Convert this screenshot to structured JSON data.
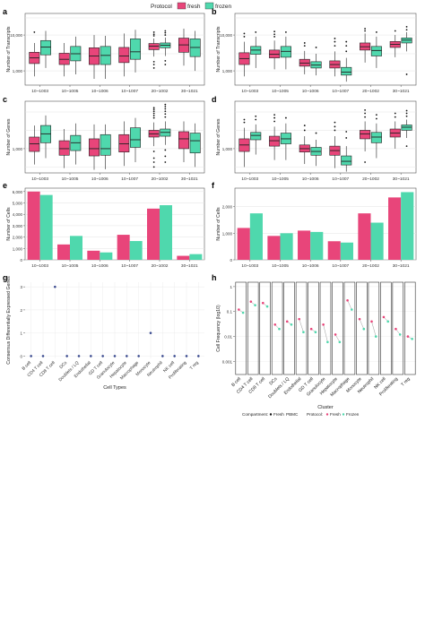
{
  "legend": {
    "title": "Protocol",
    "items": [
      {
        "label": "fresh",
        "color": "#e8457a"
      },
      {
        "label": "frozen",
        "color": "#4fd8ad"
      }
    ]
  },
  "x_categories_abcdef": [
    "10~1003",
    "10~1005",
    "10~1006",
    "10~1007",
    "20~1002",
    "30~1021"
  ],
  "panels": {
    "a": {
      "letter": "a",
      "ylabel": "Number of Transcripts",
      "yticks": [
        {
          "v": 1000,
          "label": "1,000"
        },
        {
          "v": 10000,
          "label": "10,000"
        }
      ]
    },
    "b": {
      "letter": "b",
      "ylabel": "Number of Transcripts",
      "yticks": [
        {
          "v": 1000,
          "label": "1,000"
        },
        {
          "v": 10000,
          "label": "10,000"
        }
      ]
    },
    "c": {
      "letter": "c",
      "ylabel": "Number of Genes",
      "yticks": [
        {
          "v": 1000,
          "label": "1,000"
        }
      ]
    },
    "d": {
      "letter": "d",
      "ylabel": "Number of Genes",
      "yticks": [
        {
          "v": 1000,
          "label": "1,000"
        }
      ]
    },
    "e": {
      "letter": "e",
      "ylabel": "Number of Cells",
      "yticks": [
        {
          "v": 0,
          "label": "0"
        },
        {
          "v": 1000,
          "label": "1,000"
        },
        {
          "v": 2000,
          "label": "2,000"
        },
        {
          "v": 3000,
          "label": "3,000"
        },
        {
          "v": 4000,
          "label": "4,000"
        },
        {
          "v": 5000,
          "label": "5,000"
        },
        {
          "v": 6000,
          "label": "6,000"
        }
      ]
    },
    "f": {
      "letter": "f",
      "ylabel": "Number of Cells",
      "yticks": [
        {
          "v": 0,
          "label": "0"
        },
        {
          "v": 1000,
          "label": "1,000"
        },
        {
          "v": 2000,
          "label": "2,000"
        }
      ]
    },
    "g": {
      "letter": "g",
      "ylabel": "Consensus Differentially Expressed Genes",
      "xlabel": "Cell Types",
      "yticks": [
        {
          "v": 0,
          "label": "0"
        },
        {
          "v": 1,
          "label": "1"
        },
        {
          "v": 2,
          "label": "2"
        },
        {
          "v": 3,
          "label": "3"
        }
      ]
    },
    "h": {
      "letter": "h",
      "ylabel": "Cell Frequency (log10)",
      "xlabel": "Cluster",
      "yticks": [
        {
          "v": 1,
          "label": "1"
        },
        {
          "v": 0.1,
          "label": "0.1"
        },
        {
          "v": 0.01,
          "label": "0.01"
        },
        {
          "v": 0.001,
          "label": "0.001"
        }
      ],
      "legend": {
        "compartment_title": "Compartment:",
        "compartment_items": [
          "Fresh",
          "PBMC"
        ],
        "protocol_title": "Protocol:",
        "protocol_items": [
          "Fresh",
          "Frozen"
        ]
      }
    }
  },
  "chart_data": [
    {
      "type": "box",
      "panel": "a",
      "scale": "log",
      "ylim": [
        400,
        40000
      ],
      "categories": [
        "10~1003",
        "10~1005",
        "10~1006",
        "10~1007",
        "20~1002",
        "30~1021"
      ],
      "series": [
        {
          "name": "fresh",
          "boxes": [
            {
              "q1": 1600,
              "median": 2300,
              "q3": 3300,
              "lo": 700,
              "hi": 6000,
              "outliers": [
                12000
              ]
            },
            {
              "q1": 1500,
              "median": 2100,
              "q3": 3100,
              "lo": 700,
              "hi": 6000,
              "outliers": []
            },
            {
              "q1": 1500,
              "median": 2600,
              "q3": 4400,
              "lo": 600,
              "hi": 10000,
              "outliers": []
            },
            {
              "q1": 1700,
              "median": 2600,
              "q3": 4500,
              "lo": 700,
              "hi": 11000,
              "outliers": []
            },
            {
              "q1": 3900,
              "median": 4900,
              "q3": 5800,
              "lo": 2500,
              "hi": 8000,
              "outliers": [
                9500,
                10500,
                12000,
                1800,
                1500,
                1200
              ]
            },
            {
              "q1": 3300,
              "median": 5300,
              "q3": 8200,
              "lo": 1400,
              "hi": 15000,
              "outliers": []
            }
          ]
        },
        {
          "name": "frozen",
          "boxes": [
            {
              "q1": 2800,
              "median": 4600,
              "q3": 7000,
              "lo": 1200,
              "hi": 13000,
              "outliers": []
            },
            {
              "q1": 1900,
              "median": 3000,
              "q3": 4800,
              "lo": 800,
              "hi": 9000,
              "outliers": []
            },
            {
              "q1": 1500,
              "median": 2700,
              "q3": 4800,
              "lo": 600,
              "hi": 9500,
              "outliers": []
            },
            {
              "q1": 2100,
              "median": 3400,
              "q3": 7800,
              "lo": 900,
              "hi": 14000,
              "outliers": []
            },
            {
              "q1": 4400,
              "median": 5200,
              "q3": 6000,
              "lo": 2600,
              "hi": 8500,
              "outliers": [
                10000,
                11500,
                13000,
                1900,
                1500
              ]
            },
            {
              "q1": 2500,
              "median": 4500,
              "q3": 7800,
              "lo": 1000,
              "hi": 13000,
              "outliers": []
            }
          ]
        }
      ]
    },
    {
      "type": "box",
      "panel": "b",
      "scale": "log",
      "ylim": [
        400,
        40000
      ],
      "categories": [
        "10~1003",
        "10~1005",
        "10~1006",
        "10~1007",
        "20~1002",
        "30~1021"
      ],
      "series": [
        {
          "name": "fresh",
          "boxes": [
            {
              "q1": 1500,
              "median": 2200,
              "q3": 3200,
              "lo": 700,
              "hi": 6500,
              "outliers": [
                9000,
                11000
              ]
            },
            {
              "q1": 2300,
              "median": 2900,
              "q3": 3800,
              "lo": 1100,
              "hi": 7000,
              "outliers": [
                9000,
                10500,
                12500
              ]
            },
            {
              "q1": 1350,
              "median": 1650,
              "q3": 2100,
              "lo": 800,
              "hi": 3600,
              "outliers": [
                5000,
                6000
              ]
            },
            {
              "q1": 1200,
              "median": 1500,
              "q3": 1900,
              "lo": 700,
              "hi": 3500,
              "outliers": [
                5000,
                6500,
                8000
              ]
            },
            {
              "q1": 3800,
              "median": 4700,
              "q3": 6000,
              "lo": 1700,
              "hi": 11000,
              "outliers": [
                13000,
                15000
              ]
            },
            {
              "q1": 4500,
              "median": 5500,
              "q3": 6600,
              "lo": 2400,
              "hi": 10000,
              "outliers": [
                13000
              ]
            }
          ]
        },
        {
          "name": "frozen",
          "boxes": [
            {
              "q1": 2900,
              "median": 3800,
              "q3": 4800,
              "lo": 1200,
              "hi": 9000,
              "outliers": [
                12000
              ]
            },
            {
              "q1": 2400,
              "median": 3500,
              "q3": 4800,
              "lo": 1100,
              "hi": 9000,
              "outliers": [
                12000
              ]
            },
            {
              "q1": 1200,
              "median": 1450,
              "q3": 1800,
              "lo": 750,
              "hi": 3000,
              "outliers": [
                4500
              ]
            },
            {
              "q1": 760,
              "median": 920,
              "q3": 1250,
              "lo": 500,
              "hi": 2300,
              "outliers": [
                3500,
                5000,
                6500
              ]
            },
            {
              "q1": 2600,
              "median": 3700,
              "q3": 4800,
              "lo": 1200,
              "hi": 9000,
              "outliers": [
                12000
              ]
            },
            {
              "q1": 6000,
              "median": 7200,
              "q3": 8300,
              "lo": 3500,
              "hi": 12000,
              "outliers": [
                14000,
                17000,
                800
              ]
            }
          ]
        }
      ]
    },
    {
      "type": "box",
      "panel": "c",
      "scale": "log",
      "ylim": [
        400,
        6000
      ],
      "categories": [
        "10~1003",
        "10~1005",
        "10~1006",
        "10~1007",
        "20~1002",
        "30~1021"
      ],
      "series": [
        {
          "name": "fresh",
          "boxes": [
            {
              "q1": 900,
              "median": 1200,
              "q3": 1550,
              "lo": 550,
              "hi": 2400,
              "outliers": []
            },
            {
              "q1": 780,
              "median": 1000,
              "q3": 1350,
              "lo": 480,
              "hi": 2100,
              "outliers": []
            },
            {
              "q1": 760,
              "median": 1000,
              "q3": 1450,
              "lo": 450,
              "hi": 2500,
              "outliers": []
            },
            {
              "q1": 880,
              "median": 1200,
              "q3": 1700,
              "lo": 520,
              "hi": 2800,
              "outliers": []
            },
            {
              "q1": 1550,
              "median": 1750,
              "q3": 2000,
              "lo": 1100,
              "hi": 2700,
              "outliers": [
                3200,
                3500,
                3800,
                4100,
                4400,
                4700,
                900,
                700,
                600,
                500
              ]
            },
            {
              "q1": 1000,
              "median": 1450,
              "q3": 1900,
              "lo": 600,
              "hi": 2800,
              "outliers": []
            }
          ]
        },
        {
          "name": "frozen",
          "boxes": [
            {
              "q1": 1250,
              "median": 1750,
              "q3": 2400,
              "lo": 700,
              "hi": 3500,
              "outliers": []
            },
            {
              "q1": 930,
              "median": 1250,
              "q3": 1650,
              "lo": 550,
              "hi": 2600,
              "outliers": []
            },
            {
              "q1": 780,
              "median": 1000,
              "q3": 1700,
              "lo": 460,
              "hi": 2500,
              "outliers": []
            },
            {
              "q1": 1050,
              "median": 1400,
              "q3": 2200,
              "lo": 600,
              "hi": 3200,
              "outliers": []
            },
            {
              "q1": 1600,
              "median": 1850,
              "q3": 2100,
              "lo": 1150,
              "hi": 2800,
              "outliers": [
                3300,
                3700,
                4100,
                4500,
                4900,
                5300,
                950,
                750,
                600
              ]
            },
            {
              "q1": 850,
              "median": 1350,
              "q3": 1800,
              "lo": 500,
              "hi": 2600,
              "outliers": []
            }
          ]
        }
      ]
    },
    {
      "type": "box",
      "panel": "d",
      "scale": "log",
      "ylim": [
        400,
        6000
      ],
      "categories": [
        "10~1003",
        "10~1005",
        "10~1006",
        "10~1007",
        "20~1002",
        "30~1021"
      ],
      "series": [
        {
          "name": "fresh",
          "boxes": [
            {
              "q1": 900,
              "median": 1150,
              "q3": 1450,
              "lo": 500,
              "hi": 2200,
              "outliers": [
                2700,
                3000
              ]
            },
            {
              "q1": 1100,
              "median": 1350,
              "q3": 1600,
              "lo": 650,
              "hi": 2300,
              "outliers": [
                2800,
                3200,
                3600
              ]
            },
            {
              "q1": 880,
              "median": 1000,
              "q3": 1150,
              "lo": 560,
              "hi": 1600,
              "outliers": [
                2000,
                2400
              ]
            },
            {
              "q1": 780,
              "median": 930,
              "q3": 1100,
              "lo": 480,
              "hi": 1600,
              "outliers": [
                2000,
                2300,
                2700
              ]
            },
            {
              "q1": 1450,
              "median": 1750,
              "q3": 2000,
              "lo": 900,
              "hi": 2800,
              "outliers": [
                3300,
                3800,
                4300,
                600
              ]
            },
            {
              "q1": 1550,
              "median": 1800,
              "q3": 2100,
              "lo": 1000,
              "hi": 2800,
              "outliers": [
                3300,
                3800
              ]
            }
          ]
        },
        {
          "name": "frozen",
          "boxes": [
            {
              "q1": 1400,
              "median": 1650,
              "q3": 1850,
              "lo": 800,
              "hi": 2500,
              "outliers": [
                3000,
                3400
              ]
            },
            {
              "q1": 1200,
              "median": 1450,
              "q3": 1800,
              "lo": 650,
              "hi": 2600,
              "outliers": [
                3200
              ]
            },
            {
              "q1": 780,
              "median": 900,
              "q3": 1050,
              "lo": 520,
              "hi": 1400,
              "outliers": [
                1800
              ]
            },
            {
              "q1": 540,
              "median": 620,
              "q3": 760,
              "lo": 420,
              "hi": 1100,
              "outliers": [
                1500,
                1900
              ]
            },
            {
              "q1": 1250,
              "median": 1550,
              "q3": 1850,
              "lo": 700,
              "hi": 2600,
              "outliers": [
                3100,
                3600
              ]
            },
            {
              "q1": 2000,
              "median": 2250,
              "q3": 2450,
              "lo": 1500,
              "hi": 3000,
              "outliers": [
                3400,
                3800,
                4200,
                1100
              ]
            }
          ]
        }
      ]
    },
    {
      "type": "bar",
      "panel": "e",
      "ylim": [
        0,
        6300
      ],
      "categories": [
        "10~1003",
        "10~1005",
        "10~1006",
        "10~1007",
        "20~1002",
        "30~1021"
      ],
      "series": [
        {
          "name": "fresh",
          "values": [
            6000,
            1350,
            800,
            2200,
            4500,
            350
          ]
        },
        {
          "name": "frozen",
          "values": [
            5700,
            2100,
            650,
            1650,
            4800,
            500
          ]
        }
      ]
    },
    {
      "type": "bar",
      "panel": "f",
      "ylim": [
        0,
        2700
      ],
      "categories": [
        "10~1003",
        "10~1005",
        "10~1006",
        "10~1007",
        "20~1002",
        "30~1021"
      ],
      "series": [
        {
          "name": "fresh",
          "values": [
            1200,
            900,
            1100,
            700,
            1750,
            2350
          ]
        },
        {
          "name": "frozen",
          "values": [
            1750,
            1000,
            1050,
            650,
            1400,
            2550
          ]
        }
      ]
    },
    {
      "type": "scatter",
      "panel": "g",
      "ylim": [
        -0.1,
        3.2
      ],
      "categories": [
        "B cell",
        "CD4 T cell",
        "CD8 T cell",
        "DCs",
        "Doublets / LQ",
        "Endothelial",
        "GD T cell",
        "Granulocyte",
        "Hepatocyte",
        "Macrophage",
        "Monocyte",
        "Neutrophil",
        "NK cell",
        "Proliferating",
        "T reg"
      ],
      "values": [
        0,
        0,
        3,
        0,
        0,
        0,
        0,
        0,
        0,
        0,
        1,
        0,
        0,
        0,
        0
      ]
    },
    {
      "type": "scatter",
      "panel": "h",
      "scale": "log",
      "ylim": [
        0.0003,
        1.5
      ],
      "categories": [
        "B cell",
        "CD4 T cell",
        "CD8 T cell",
        "DCs",
        "Doublets / LQ",
        "Endothelial",
        "GD T cell",
        "Granulocyte",
        "Hepatocyte",
        "Macrophage",
        "Monocyte",
        "Neutrophil",
        "NK cell",
        "Proliferating",
        "T reg"
      ],
      "series": [
        {
          "name": "Fresh",
          "values": [
            0.12,
            0.25,
            0.22,
            0.03,
            0.04,
            0.05,
            0.02,
            0.03,
            0.012,
            0.28,
            0.05,
            0.04,
            0.06,
            0.02,
            0.01
          ]
        },
        {
          "name": "Frozen",
          "values": [
            0.09,
            0.18,
            0.16,
            0.02,
            0.03,
            0.015,
            0.015,
            0.006,
            0.006,
            0.12,
            0.02,
            0.01,
            0.04,
            0.012,
            0.008
          ]
        }
      ]
    }
  ]
}
